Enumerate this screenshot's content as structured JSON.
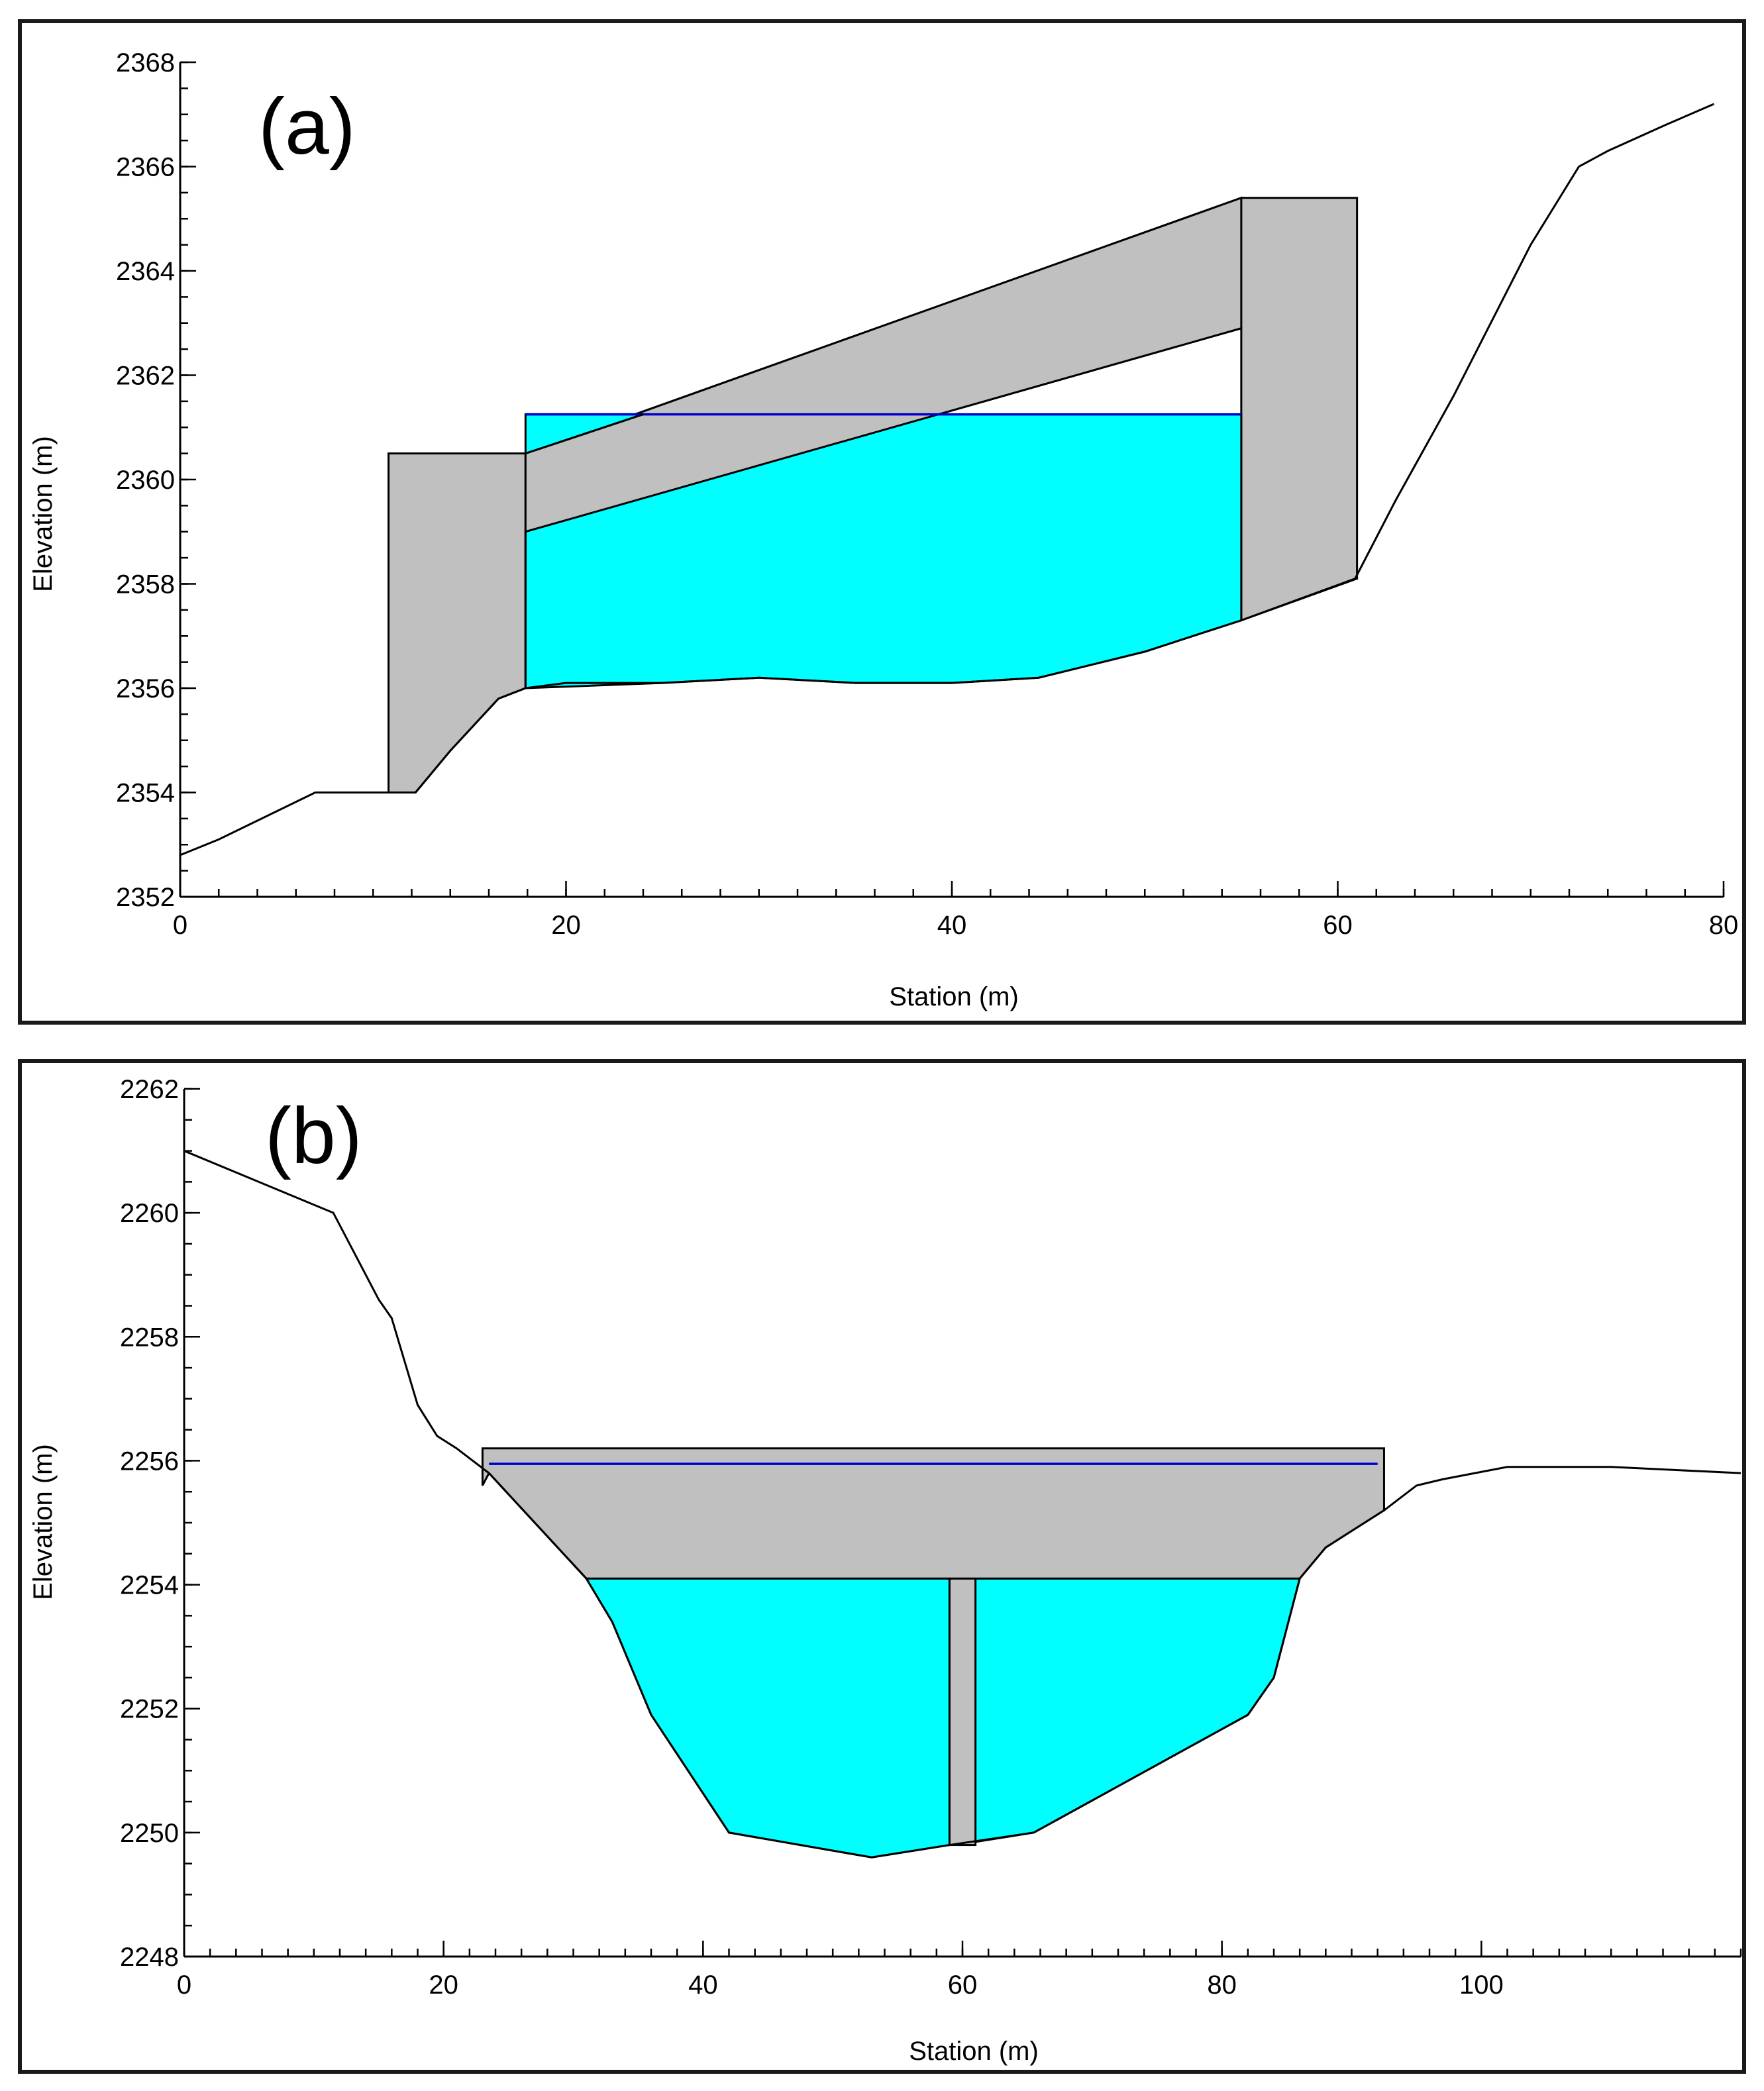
{
  "colors": {
    "water": "#00ffff",
    "structure": "#c0c0c0",
    "water_surface_line": "#0000cc",
    "ground_line": "#000000"
  },
  "chart_data": [
    {
      "type": "area",
      "panel_label": "(a)",
      "xlabel": "Station (m)",
      "ylabel": "Elevation (m)",
      "xlim": [
        0,
        80
      ],
      "ylim": [
        2352,
        2368
      ],
      "x_ticks": [
        0,
        20,
        40,
        60,
        80
      ],
      "y_ticks": [
        2352,
        2354,
        2356,
        2358,
        2360,
        2362,
        2364,
        2366,
        2368
      ],
      "x_minor_step": 2,
      "y_minor_step": 0.5,
      "ground_profile": {
        "x": [
          0,
          2,
          7,
          10.8,
          12.2,
          14,
          16.5,
          17.9,
          20,
          25,
          30,
          35,
          40,
          44.5,
          50,
          55,
          60.9,
          63,
          66,
          70,
          72.5,
          74,
          77,
          79.5
        ],
        "y": [
          2352.8,
          2353.1,
          2354.0,
          2354.0,
          2354.0,
          2354.8,
          2355.8,
          2356.0,
          2356.1,
          2356.1,
          2356.2,
          2356.1,
          2356.1,
          2356.2,
          2356.7,
          2357.3,
          2358.1,
          2359.6,
          2361.6,
          2364.5,
          2366.0,
          2366.3,
          2366.8,
          2367.2
        ]
      },
      "structure_outer": {
        "x": [
          10.8,
          10.8,
          17.9,
          55.0,
          61.0,
          61.0,
          55.0,
          55.0,
          17.9,
          17.9,
          16.5,
          14.0,
          12.2
        ],
        "y": [
          2354.0,
          2360.5,
          2360.5,
          2365.4,
          2365.4,
          2358.1,
          2357.3,
          2362.9,
          2359.0,
          2356.0,
          2355.8,
          2354.8,
          2354.0
        ]
      },
      "water_fill": {
        "x": [
          17.9,
          17.9,
          25.0,
          30.0,
          35.0,
          40.0,
          44.5,
          50.0,
          55.0,
          55.0,
          40.0,
          24.0,
          17.9
        ],
        "y": [
          2359.0,
          2356.0,
          2356.1,
          2356.2,
          2356.1,
          2356.1,
          2356.2,
          2356.7,
          2357.3,
          2361.25,
          2361.25,
          2361.25,
          2360.5
        ]
      },
      "water_surface": {
        "x": [
          17.9,
          55.0
        ],
        "y": 2361.25
      }
    },
    {
      "type": "area",
      "panel_label": "(b)",
      "xlabel": "Station (m)",
      "ylabel": "Elevation (m)",
      "xlim": [
        0,
        120
      ],
      "ylim": [
        2248,
        2262
      ],
      "x_ticks": [
        0,
        20,
        40,
        60,
        80,
        100
      ],
      "y_ticks": [
        2248,
        2250,
        2252,
        2254,
        2256,
        2258,
        2260,
        2262
      ],
      "x_minor_step": 2,
      "y_minor_step": 0.5,
      "ground_profile": {
        "x": [
          0,
          11.5,
          15,
          16,
          18,
          19.5,
          21,
          23.5,
          31,
          33,
          36,
          42,
          53,
          59,
          65.5,
          82,
          84,
          86,
          88,
          92.5,
          95,
          97,
          102,
          110,
          120
        ],
        "y": [
          2261.0,
          2260.0,
          2258.6,
          2258.3,
          2256.9,
          2256.4,
          2256.2,
          2255.8,
          2254.1,
          2253.4,
          2251.9,
          2250.0,
          2249.6,
          2249.8,
          2250.0,
          2251.9,
          2252.5,
          2254.1,
          2254.6,
          2255.2,
          2255.6,
          2255.7,
          2255.9,
          2255.9,
          2255.8
        ]
      },
      "deck": {
        "x": [
          23.0,
          23.0,
          92.5,
          92.5,
          88.0,
          86.0,
          31.0,
          23.5
        ],
        "y": [
          2255.6,
          2256.2,
          2256.2,
          2255.2,
          2254.6,
          2254.1,
          2254.1,
          2255.8
        ]
      },
      "pier": {
        "x": [
          59.0,
          61.0
        ],
        "y": [
          2249.8,
          2254.1
        ]
      },
      "water_left": {
        "x": [
          31.0,
          33.0,
          36.0,
          42.0,
          53.0,
          59.0,
          59.0
        ],
        "y": [
          2254.1,
          2253.4,
          2251.9,
          2250.0,
          2249.6,
          2249.8,
          2254.1
        ]
      },
      "water_right": {
        "x": [
          61.0,
          61.0,
          65.5,
          82.0,
          84.0,
          86.0
        ],
        "y": [
          2254.1,
          2249.85,
          2250.0,
          2251.9,
          2252.5,
          2254.1
        ]
      },
      "water_surface": {
        "x": [
          23.5,
          92.0
        ],
        "y": 2255.95
      }
    }
  ]
}
